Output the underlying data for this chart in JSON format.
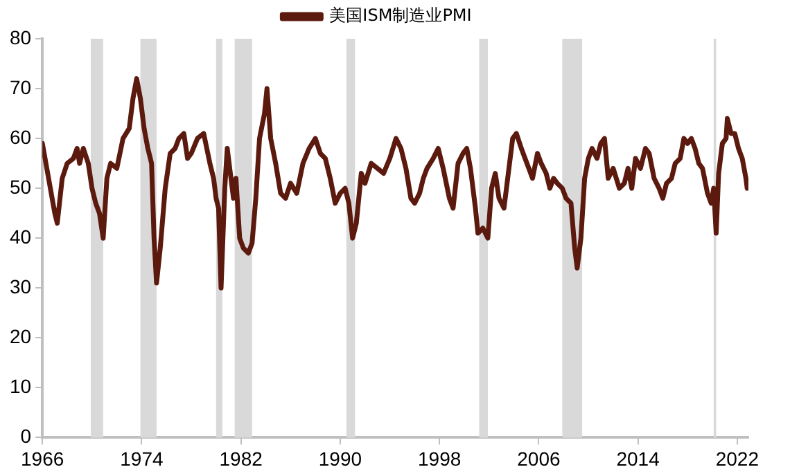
{
  "chart_data": {
    "type": "line",
    "legend": "top",
    "grid": false,
    "marker": "none",
    "line_style": "solid",
    "xlim": [
      1966,
      2022.9
    ],
    "xticks": [
      1966,
      1974,
      1982,
      1990,
      1998,
      2006,
      2014,
      2022
    ],
    "ylim": [
      0,
      80
    ],
    "yticks": [
      0,
      10,
      20,
      30,
      40,
      50,
      60,
      70,
      80
    ],
    "bands": [
      {
        "axis": "x",
        "from": 1969.9,
        "to": 1970.9,
        "color": "#d9d9d9"
      },
      {
        "axis": "x",
        "from": 1973.9,
        "to": 1975.2,
        "color": "#d9d9d9"
      },
      {
        "axis": "x",
        "from": 1980.0,
        "to": 1980.5,
        "color": "#d9d9d9"
      },
      {
        "axis": "x",
        "from": 1981.5,
        "to": 1982.9,
        "color": "#d9d9d9"
      },
      {
        "axis": "x",
        "from": 1990.5,
        "to": 1991.2,
        "color": "#d9d9d9"
      },
      {
        "axis": "x",
        "from": 2001.2,
        "to": 2001.9,
        "color": "#d9d9d9"
      },
      {
        "axis": "x",
        "from": 2007.9,
        "to": 2009.5,
        "color": "#d9d9d9"
      },
      {
        "axis": "x",
        "from": 2020.1,
        "to": 2020.3,
        "color": "#d9d9d9"
      }
    ],
    "series": [
      {
        "name": "美国ISM制造业PMI",
        "color": "#5c1a0f",
        "x": [
          1966.0,
          1966.5,
          1967.0,
          1967.2,
          1967.6,
          1968.0,
          1968.5,
          1968.8,
          1969.0,
          1969.3,
          1969.7,
          1970.0,
          1970.3,
          1970.6,
          1970.9,
          1971.2,
          1971.5,
          1972.0,
          1972.5,
          1973.0,
          1973.3,
          1973.6,
          1973.9,
          1974.2,
          1974.5,
          1974.8,
          1975.0,
          1975.2,
          1975.5,
          1975.9,
          1976.3,
          1976.7,
          1977.0,
          1977.4,
          1977.7,
          1978.0,
          1978.5,
          1979.0,
          1979.5,
          1979.8,
          1980.0,
          1980.2,
          1980.4,
          1980.7,
          1980.9,
          1981.1,
          1981.4,
          1981.6,
          1981.9,
          1982.2,
          1982.6,
          1982.9,
          1983.2,
          1983.5,
          1983.9,
          1984.1,
          1984.4,
          1984.8,
          1985.2,
          1985.6,
          1986.0,
          1986.5,
          1987.0,
          1987.5,
          1988.0,
          1988.4,
          1988.8,
          1989.2,
          1989.6,
          1990.0,
          1990.4,
          1990.7,
          1991.0,
          1991.3,
          1991.7,
          1992.0,
          1992.5,
          1993.0,
          1993.5,
          1994.0,
          1994.5,
          1994.9,
          1995.3,
          1995.7,
          1996.0,
          1996.4,
          1996.7,
          1997.0,
          1997.5,
          1997.9,
          1998.3,
          1998.8,
          1999.1,
          1999.5,
          1999.9,
          2000.2,
          2000.5,
          2000.9,
          2001.1,
          2001.5,
          2001.9,
          2002.2,
          2002.5,
          2002.8,
          2003.2,
          2003.5,
          2003.9,
          2004.2,
          2004.6,
          2004.9,
          2005.2,
          2005.5,
          2005.9,
          2006.2,
          2006.6,
          2006.9,
          2007.2,
          2007.5,
          2007.9,
          2008.2,
          2008.6,
          2008.9,
          2009.1,
          2009.4,
          2009.7,
          2010.0,
          2010.3,
          2010.7,
          2011.0,
          2011.3,
          2011.6,
          2012.0,
          2012.5,
          2012.9,
          2013.2,
          2013.5,
          2013.8,
          2014.2,
          2014.6,
          2014.9,
          2015.3,
          2015.7,
          2016.0,
          2016.3,
          2016.7,
          2017.0,
          2017.4,
          2017.7,
          2018.0,
          2018.3,
          2018.6,
          2018.9,
          2019.2,
          2019.6,
          2019.9,
          2020.1,
          2020.3,
          2020.5,
          2020.8,
          2021.1,
          2021.2,
          2021.5,
          2021.8,
          2022.1,
          2022.4,
          2022.7,
          2022.8
        ],
        "values": [
          59,
          52,
          45,
          43,
          52,
          55,
          56,
          58,
          55,
          58,
          55,
          50,
          47,
          45,
          40,
          52,
          55,
          54,
          60,
          62,
          68,
          72,
          68,
          62,
          58,
          55,
          40,
          31,
          38,
          50,
          57,
          58,
          60,
          61,
          56,
          57,
          60,
          61,
          55,
          52,
          48,
          46,
          30,
          50,
          58,
          54,
          48,
          52,
          40,
          38,
          37,
          39,
          48,
          60,
          65,
          70,
          60,
          55,
          49,
          48,
          51,
          49,
          55,
          58,
          60,
          57,
          56,
          52,
          47,
          49,
          50,
          47,
          40,
          43,
          53,
          51,
          55,
          54,
          53,
          56,
          60,
          58,
          54,
          48,
          47,
          49,
          52,
          54,
          56,
          58,
          54,
          48,
          46,
          55,
          57,
          58,
          54,
          46,
          41,
          42,
          40,
          50,
          53,
          48,
          46,
          52,
          60,
          61,
          58,
          56,
          54,
          52,
          57,
          55,
          53,
          50,
          52,
          51,
          50,
          48,
          47,
          38,
          34,
          40,
          52,
          56,
          58,
          56,
          59,
          60,
          52,
          54,
          50,
          51,
          54,
          50,
          56,
          54,
          58,
          57,
          52,
          50,
          48,
          51,
          52,
          55,
          56,
          60,
          59,
          60,
          58,
          55,
          54,
          49,
          47,
          50,
          41,
          53,
          59,
          60,
          64,
          61,
          61,
          58,
          56,
          52,
          50
        ]
      }
    ]
  }
}
